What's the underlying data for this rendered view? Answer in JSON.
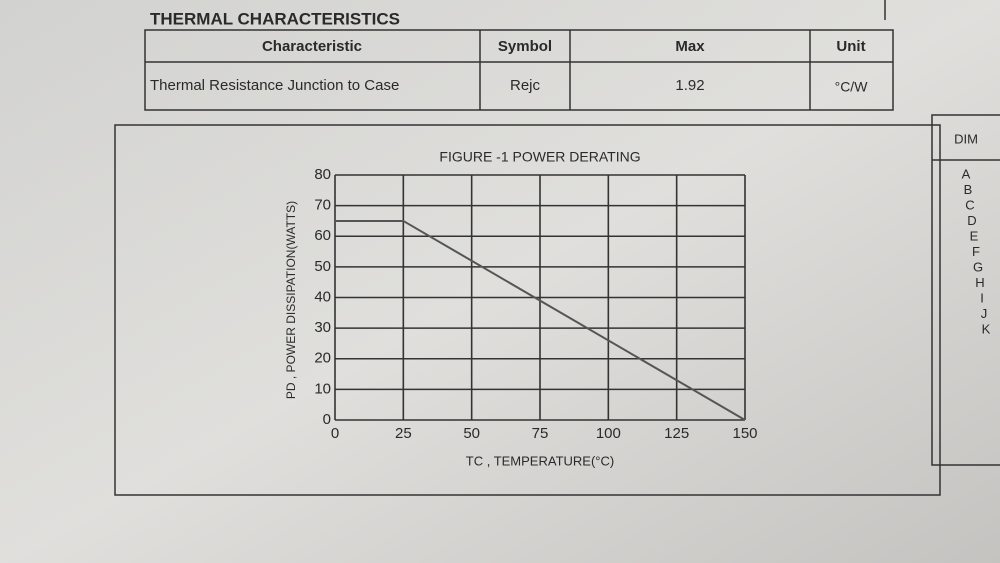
{
  "header": {
    "title": "THERMAL CHARACTERISTICS"
  },
  "table": {
    "columns": [
      "Characteristic",
      "Symbol",
      "Max",
      "Unit"
    ],
    "rows": [
      [
        "Thermal Resistance Junction to Case",
        "Rejc",
        "1.92",
        "°C/W"
      ]
    ]
  },
  "side_table": {
    "header": "DIM",
    "rows": [
      "A",
      "B",
      "C",
      "D",
      "E",
      "F",
      "G",
      "H",
      "I",
      "J",
      "K"
    ]
  },
  "chart_data": {
    "type": "line",
    "title": "FIGURE -1 POWER DERATING",
    "x_label": "TC , TEMPERATURE(°C)",
    "y_label": "PD , POWER DISSIPATION(WATTS)",
    "x": [
      0,
      25,
      150
    ],
    "values": [
      65,
      65,
      0
    ],
    "color": "#555555",
    "xlim": [
      0,
      150
    ],
    "ylim": [
      0,
      80
    ],
    "xticks": [
      0,
      25,
      50,
      75,
      100,
      125,
      150
    ],
    "yticks": [
      0,
      10,
      20,
      30,
      40,
      50,
      60,
      70,
      80
    ],
    "grid": true
  }
}
